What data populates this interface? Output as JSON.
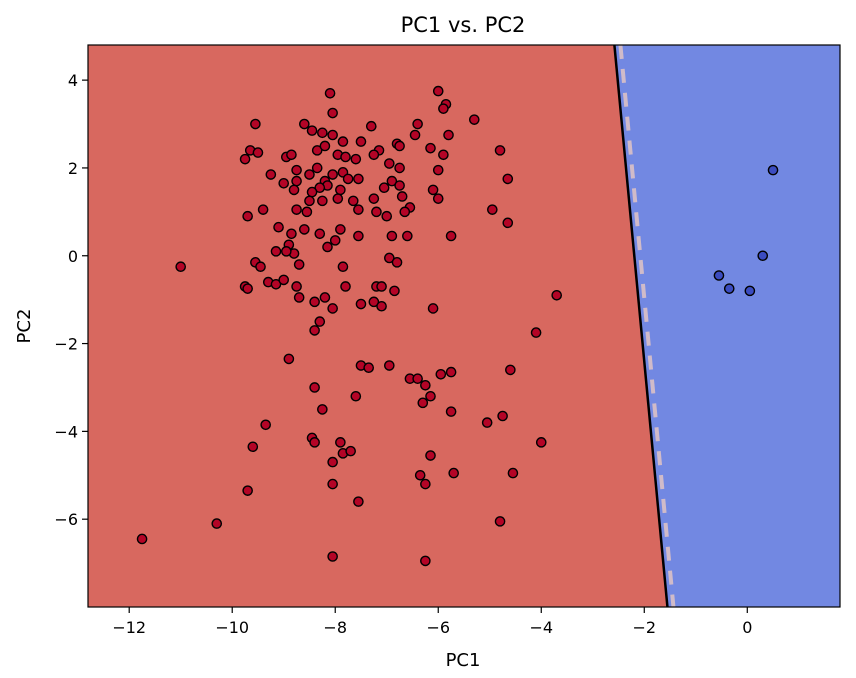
{
  "chart_data": {
    "type": "scatter",
    "title": "PC1 vs. PC2",
    "xlabel": "PC1",
    "ylabel": "PC2",
    "xlim": [
      -12.8,
      1.8
    ],
    "ylim": [
      -8.0,
      4.8
    ],
    "x_ticks": [
      -12,
      -10,
      -8,
      -6,
      -4,
      -2,
      0
    ],
    "y_ticks": [
      -6,
      -4,
      -2,
      0,
      2,
      4
    ],
    "x_tick_labels": [
      "−12",
      "−10",
      "−8",
      "−6",
      "−4",
      "−2",
      "0"
    ],
    "y_tick_labels": [
      "−6",
      "−4",
      "−2",
      "0",
      "2",
      "4"
    ],
    "grid": false,
    "decision_boundary": {
      "points": [
        [
          -2.58,
          4.8
        ],
        [
          -1.55,
          -8.0
        ]
      ],
      "region_colors": {
        "left": "#d8685f",
        "right": "#7288e2"
      }
    },
    "series": [
      {
        "color": "#b40426",
        "points": [
          [
            -8.1,
            3.7
          ],
          [
            -6.0,
            3.75
          ],
          [
            -5.85,
            3.45
          ],
          [
            -5.9,
            3.35
          ],
          [
            -5.3,
            3.1
          ],
          [
            -8.05,
            3.25
          ],
          [
            -6.4,
            3.0
          ],
          [
            -6.45,
            2.75
          ],
          [
            -5.8,
            2.75
          ],
          [
            -8.6,
            3.0
          ],
          [
            -8.45,
            2.85
          ],
          [
            -8.25,
            2.8
          ],
          [
            -8.05,
            2.75
          ],
          [
            -7.3,
            2.95
          ],
          [
            -7.85,
            2.6
          ],
          [
            -7.5,
            2.6
          ],
          [
            -6.8,
            2.55
          ],
          [
            -6.75,
            2.5
          ],
          [
            -7.15,
            2.4
          ],
          [
            -6.15,
            2.45
          ],
          [
            -5.9,
            2.3
          ],
          [
            -8.35,
            2.4
          ],
          [
            -8.2,
            2.5
          ],
          [
            -7.95,
            2.3
          ],
          [
            -7.8,
            2.25
          ],
          [
            -7.6,
            2.2
          ],
          [
            -7.25,
            2.3
          ],
          [
            -6.95,
            2.1
          ],
          [
            -6.75,
            2.0
          ],
          [
            -4.8,
            2.4
          ],
          [
            -9.55,
            3.0
          ],
          [
            -9.75,
            2.2
          ],
          [
            -9.65,
            2.4
          ],
          [
            -9.5,
            2.35
          ],
          [
            -8.95,
            2.25
          ],
          [
            -8.85,
            2.3
          ],
          [
            -8.75,
            1.95
          ],
          [
            -8.5,
            1.85
          ],
          [
            -8.35,
            2.0
          ],
          [
            -8.2,
            1.7
          ],
          [
            -8.05,
            1.85
          ],
          [
            -7.85,
            1.9
          ],
          [
            -7.75,
            1.75
          ],
          [
            -7.55,
            1.75
          ],
          [
            -7.9,
            1.5
          ],
          [
            -8.15,
            1.6
          ],
          [
            -8.3,
            1.55
          ],
          [
            -8.45,
            1.45
          ],
          [
            -8.75,
            1.7
          ],
          [
            -8.8,
            1.5
          ],
          [
            -9.0,
            1.65
          ],
          [
            -9.25,
            1.85
          ],
          [
            -8.5,
            1.25
          ],
          [
            -8.25,
            1.25
          ],
          [
            -8.75,
            1.05
          ],
          [
            -8.55,
            1.0
          ],
          [
            -7.95,
            1.3
          ],
          [
            -7.65,
            1.25
          ],
          [
            -7.55,
            1.05
          ],
          [
            -7.25,
            1.3
          ],
          [
            -7.05,
            1.55
          ],
          [
            -7.2,
            1.0
          ],
          [
            -7.0,
            0.9
          ],
          [
            -6.9,
            1.7
          ],
          [
            -6.75,
            1.6
          ],
          [
            -6.7,
            1.35
          ],
          [
            -6.55,
            1.1
          ],
          [
            -6.65,
            1.0
          ],
          [
            -6.0,
            1.95
          ],
          [
            -6.1,
            1.5
          ],
          [
            -6.0,
            1.3
          ],
          [
            -4.65,
            1.75
          ],
          [
            -4.95,
            1.05
          ],
          [
            -4.65,
            0.75
          ],
          [
            -9.7,
            0.9
          ],
          [
            -9.4,
            1.05
          ],
          [
            -9.1,
            0.65
          ],
          [
            -8.85,
            0.5
          ],
          [
            -8.9,
            0.25
          ],
          [
            -8.8,
            0.05
          ],
          [
            -8.6,
            0.6
          ],
          [
            -8.3,
            0.5
          ],
          [
            -8.15,
            0.2
          ],
          [
            -8.0,
            0.35
          ],
          [
            -7.9,
            0.6
          ],
          [
            -7.55,
            0.45
          ],
          [
            -6.9,
            0.45
          ],
          [
            -6.6,
            0.45
          ],
          [
            -5.75,
            0.45
          ],
          [
            -11.0,
            -0.25
          ],
          [
            -9.55,
            -0.15
          ],
          [
            -9.45,
            -0.25
          ],
          [
            -9.15,
            0.1
          ],
          [
            -8.95,
            0.1
          ],
          [
            -8.7,
            -0.2
          ],
          [
            -7.85,
            -0.25
          ],
          [
            -6.95,
            -0.05
          ],
          [
            -6.8,
            -0.15
          ],
          [
            -9.75,
            -0.7
          ],
          [
            -9.7,
            -0.75
          ],
          [
            -9.3,
            -0.6
          ],
          [
            -9.15,
            -0.65
          ],
          [
            -9.0,
            -0.55
          ],
          [
            -8.75,
            -0.7
          ],
          [
            -8.7,
            -0.95
          ],
          [
            -8.4,
            -1.05
          ],
          [
            -8.2,
            -0.95
          ],
          [
            -7.8,
            -0.7
          ],
          [
            -7.2,
            -0.7
          ],
          [
            -7.1,
            -0.7
          ],
          [
            -6.85,
            -0.8
          ],
          [
            -7.25,
            -1.05
          ],
          [
            -7.1,
            -1.15
          ],
          [
            -6.1,
            -1.2
          ],
          [
            -7.5,
            -1.1
          ],
          [
            -8.05,
            -1.2
          ],
          [
            -8.3,
            -1.5
          ],
          [
            -8.4,
            -1.7
          ],
          [
            -3.7,
            -0.9
          ],
          [
            -4.1,
            -1.75
          ],
          [
            -8.9,
            -2.35
          ],
          [
            -7.5,
            -2.5
          ],
          [
            -7.35,
            -2.55
          ],
          [
            -6.95,
            -2.5
          ],
          [
            -6.55,
            -2.8
          ],
          [
            -6.4,
            -2.8
          ],
          [
            -5.95,
            -2.7
          ],
          [
            -5.75,
            -2.65
          ],
          [
            -6.25,
            -2.95
          ],
          [
            -6.15,
            -3.2
          ],
          [
            -4.6,
            -2.6
          ],
          [
            -8.4,
            -3.0
          ],
          [
            -7.6,
            -3.2
          ],
          [
            -6.3,
            -3.35
          ],
          [
            -8.25,
            -3.5
          ],
          [
            -5.75,
            -3.55
          ],
          [
            -5.05,
            -3.8
          ],
          [
            -4.75,
            -3.65
          ],
          [
            -9.35,
            -3.85
          ],
          [
            -8.45,
            -4.15
          ],
          [
            -8.4,
            -4.25
          ],
          [
            -7.9,
            -4.25
          ],
          [
            -7.85,
            -4.5
          ],
          [
            -7.7,
            -4.45
          ],
          [
            -9.6,
            -4.35
          ],
          [
            -8.05,
            -4.7
          ],
          [
            -6.15,
            -4.55
          ],
          [
            -4.0,
            -4.25
          ],
          [
            -6.35,
            -5.0
          ],
          [
            -5.7,
            -4.95
          ],
          [
            -4.55,
            -4.95
          ],
          [
            -8.05,
            -5.2
          ],
          [
            -6.25,
            -5.2
          ],
          [
            -9.7,
            -5.35
          ],
          [
            -7.55,
            -5.6
          ],
          [
            -10.3,
            -6.1
          ],
          [
            -4.8,
            -6.05
          ],
          [
            -11.75,
            -6.45
          ],
          [
            -8.05,
            -6.85
          ],
          [
            -6.25,
            -6.95
          ]
        ]
      },
      {
        "color": "#3b4cc0",
        "points": [
          [
            0.5,
            1.95
          ],
          [
            0.3,
            0.0
          ],
          [
            -0.55,
            -0.45
          ],
          [
            -0.35,
            -0.75
          ],
          [
            0.05,
            -0.8
          ]
        ]
      }
    ]
  }
}
